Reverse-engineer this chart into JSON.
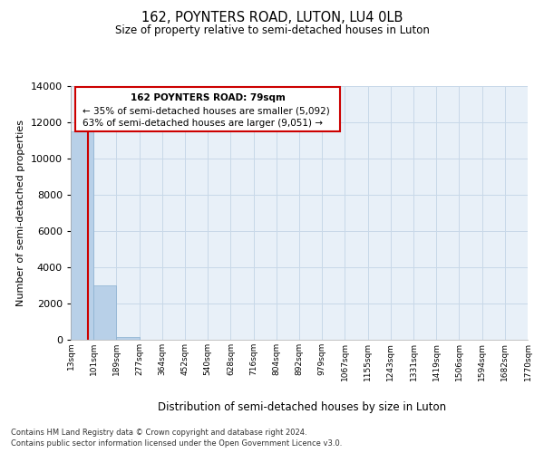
{
  "title": "162, POYNTERS ROAD, LUTON, LU4 0LB",
  "subtitle": "Size of property relative to semi-detached houses in Luton",
  "xlabel": "Distribution of semi-detached houses by size in Luton",
  "ylabel": "Number of semi-detached properties",
  "property_size": 79,
  "property_label": "162 POYNTERS ROAD: 79sqm",
  "pct_smaller": 35,
  "count_smaller": 5092,
  "pct_larger": 63,
  "count_larger": 9051,
  "bin_labels": [
    "13sqm",
    "101sqm",
    "189sqm",
    "277sqm",
    "364sqm",
    "452sqm",
    "540sqm",
    "628sqm",
    "716sqm",
    "804sqm",
    "892sqm",
    "979sqm",
    "1067sqm",
    "1155sqm",
    "1243sqm",
    "1331sqm",
    "1419sqm",
    "1506sqm",
    "1594sqm",
    "1682sqm",
    "1770sqm"
  ],
  "bar_heights": [
    11500,
    3000,
    150,
    0,
    0,
    0,
    0,
    0,
    0,
    0,
    0,
    0,
    0,
    0,
    0,
    0,
    0,
    0,
    0,
    0
  ],
  "bar_color": "#b8d0e8",
  "bar_edge_color": "#8ab0d0",
  "property_line_color": "#cc0000",
  "ylim": [
    0,
    14000
  ],
  "yticks": [
    0,
    2000,
    4000,
    6000,
    8000,
    10000,
    12000,
    14000
  ],
  "grid_color": "#c8d8e8",
  "background_color": "#e8f0f8",
  "annotation_box_color": "#cc0000",
  "footer_line1": "Contains HM Land Registry data © Crown copyright and database right 2024.",
  "footer_line2": "Contains public sector information licensed under the Open Government Licence v3.0."
}
